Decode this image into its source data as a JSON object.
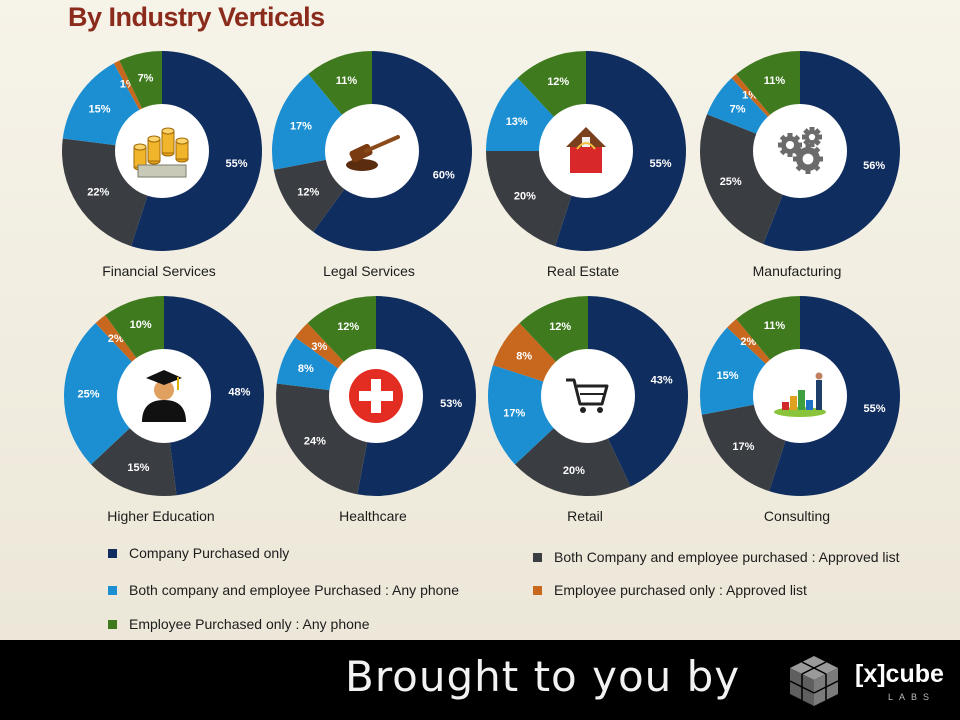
{
  "title": "By Industry Verticals",
  "colors": {
    "company": "#0f2d5e",
    "both_any": "#1b8fd2",
    "employee_any": "#3f7a1e",
    "both_approved": "#3a3d42",
    "employee_approved": "#c8681e"
  },
  "legend": {
    "company": "Company Purchased only",
    "both_any": "Both company and employee Purchased : Any phone",
    "employee_any": "Employee Purchased only : Any phone",
    "both_approved": "Both Company and employee purchased : Approved list",
    "employee_approved": "Employee purchased only : Approved list"
  },
  "footer": {
    "brought": "Brought to you by",
    "logo": "[x]cube",
    "logo_sub": "LABS"
  },
  "chart_data": {
    "type": "pie",
    "series_order": [
      "company",
      "both_approved",
      "both_any",
      "employee_approved",
      "employee_any"
    ],
    "charts": [
      {
        "name": "Financial Services",
        "icon": "money-icon",
        "values": [
          55,
          22,
          15,
          1,
          7
        ]
      },
      {
        "name": "Legal Services",
        "icon": "gavel-icon",
        "values": [
          60,
          12,
          17,
          0,
          11
        ]
      },
      {
        "name": "Real Estate",
        "icon": "house-icon",
        "values": [
          55,
          20,
          13,
          0,
          12
        ]
      },
      {
        "name": "Manufacturing",
        "icon": "gears-icon",
        "values": [
          56,
          25,
          7,
          1,
          11
        ]
      },
      {
        "name": "Higher Education",
        "icon": "graduate-icon",
        "values": [
          48,
          15,
          25,
          2,
          10
        ]
      },
      {
        "name": "Healthcare",
        "icon": "medical-cross-icon",
        "values": [
          53,
          24,
          8,
          3,
          12
        ]
      },
      {
        "name": "Retail",
        "icon": "shopping-cart-icon",
        "values": [
          43,
          20,
          17,
          8,
          12
        ]
      },
      {
        "name": "Consulting",
        "icon": "growth-chart-icon",
        "values": [
          55,
          17,
          15,
          2,
          11
        ]
      }
    ]
  }
}
